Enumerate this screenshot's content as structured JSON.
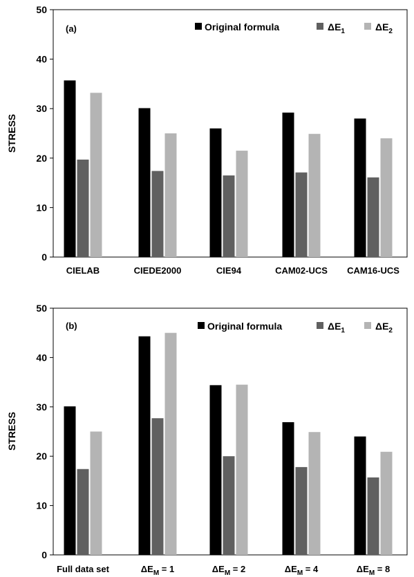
{
  "chart_data": [
    {
      "type": "bar",
      "panel_label": "(a)",
      "ylabel": "STRESS",
      "ylim": [
        0,
        50
      ],
      "yticks": [
        "0",
        "10",
        "20",
        "30",
        "40",
        "50"
      ],
      "categories": [
        "CIELAB",
        "CIEDE2000",
        "CIE94",
        "CAM02-UCS",
        "CAM16-UCS"
      ],
      "legend_position": "top-right",
      "series": [
        {
          "name": "Original formula",
          "color": "#000000",
          "values": [
            35.7,
            30.1,
            26.0,
            29.2,
            28.0
          ]
        },
        {
          "name_base": "ΔE",
          "name_sub": "1",
          "color": "#606060",
          "values": [
            19.7,
            17.4,
            16.5,
            17.1,
            16.1
          ]
        },
        {
          "name_base": "ΔE",
          "name_sub": "2",
          "color": "#b4b4b4",
          "values": [
            33.2,
            25.0,
            21.5,
            24.9,
            24.0
          ]
        }
      ]
    },
    {
      "type": "bar",
      "panel_label": "(b)",
      "ylabel": "STRESS",
      "ylim": [
        0,
        50
      ],
      "yticks": [
        "0",
        "10",
        "20",
        "30",
        "40",
        "50"
      ],
      "categories": [
        {
          "text": "Full data set"
        },
        {
          "base": "ΔE",
          "sub": "M",
          "rest": " = 1"
        },
        {
          "base": "ΔE",
          "sub": "M",
          "rest": " = 2"
        },
        {
          "base": "ΔE",
          "sub": "M",
          "rest": " = 4"
        },
        {
          "base": "ΔE",
          "sub": "M",
          "rest": " = 8"
        }
      ],
      "legend_position": "top-right",
      "series": [
        {
          "name": "Original formula",
          "color": "#000000",
          "values": [
            30.1,
            44.3,
            34.4,
            26.9,
            24.0
          ]
        },
        {
          "name_base": "ΔE",
          "name_sub": "1",
          "color": "#606060",
          "values": [
            17.4,
            27.7,
            20.0,
            17.8,
            15.7
          ]
        },
        {
          "name_base": "ΔE",
          "name_sub": "2",
          "color": "#b4b4b4",
          "values": [
            25.0,
            45.0,
            34.5,
            24.9,
            20.9
          ]
        }
      ]
    }
  ]
}
